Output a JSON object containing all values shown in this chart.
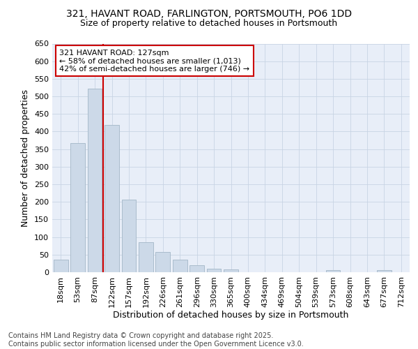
{
  "title_line1": "321, HAVANT ROAD, FARLINGTON, PORTSMOUTH, PO6 1DD",
  "title_line2": "Size of property relative to detached houses in Portsmouth",
  "xlabel": "Distribution of detached houses by size in Portsmouth",
  "ylabel": "Number of detached properties",
  "categories": [
    "18sqm",
    "53sqm",
    "87sqm",
    "122sqm",
    "157sqm",
    "192sqm",
    "226sqm",
    "261sqm",
    "296sqm",
    "330sqm",
    "365sqm",
    "400sqm",
    "434sqm",
    "469sqm",
    "504sqm",
    "539sqm",
    "573sqm",
    "608sqm",
    "643sqm",
    "677sqm",
    "712sqm"
  ],
  "values": [
    35,
    368,
    522,
    418,
    207,
    85,
    57,
    35,
    20,
    10,
    8,
    0,
    0,
    0,
    0,
    0,
    5,
    0,
    0,
    5,
    0
  ],
  "bar_color": "#ccd9e8",
  "bar_edge_color": "#aabccc",
  "vline_color": "#cc0000",
  "annotation_text": "321 HAVANT ROAD: 127sqm\n← 58% of detached houses are smaller (1,013)\n42% of semi-detached houses are larger (746) →",
  "annotation_box_color": "#ffffff",
  "annotation_box_edge": "#cc0000",
  "ylim": [
    0,
    650
  ],
  "yticks": [
    0,
    50,
    100,
    150,
    200,
    250,
    300,
    350,
    400,
    450,
    500,
    550,
    600,
    650
  ],
  "grid_color": "#c8d4e4",
  "background_color": "#ffffff",
  "plot_bg_color": "#e8eef8",
  "footnote": "Contains HM Land Registry data © Crown copyright and database right 2025.\nContains public sector information licensed under the Open Government Licence v3.0.",
  "title_fontsize": 10,
  "subtitle_fontsize": 9,
  "axis_label_fontsize": 9,
  "tick_fontsize": 8,
  "annotation_fontsize": 8,
  "footnote_fontsize": 7
}
